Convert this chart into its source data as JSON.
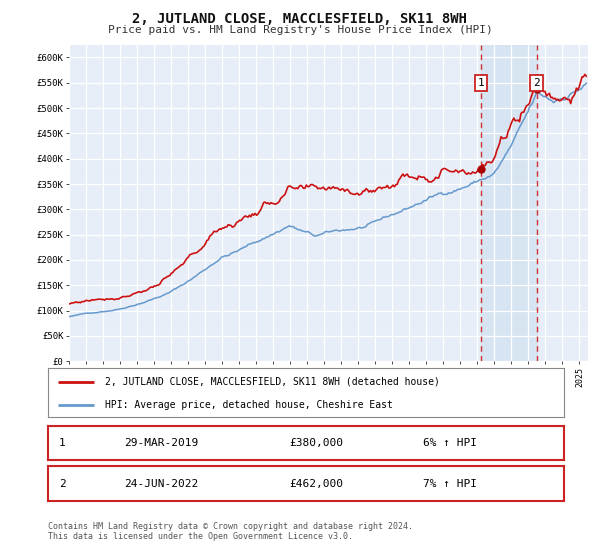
{
  "title": "2, JUTLAND CLOSE, MACCLESFIELD, SK11 8WH",
  "subtitle": "Price paid vs. HM Land Registry's House Price Index (HPI)",
  "background_color": "#ffffff",
  "plot_bg_color": "#e8eef8",
  "grid_color": "#ffffff",
  "ylim": [
    0,
    625000
  ],
  "yticks": [
    0,
    50000,
    100000,
    150000,
    200000,
    250000,
    300000,
    350000,
    400000,
    450000,
    500000,
    550000,
    600000
  ],
  "ytick_labels": [
    "£0",
    "£50K",
    "£100K",
    "£150K",
    "£200K",
    "£250K",
    "£300K",
    "£350K",
    "£400K",
    "£450K",
    "£500K",
    "£550K",
    "£600K"
  ],
  "xlim_start": 1995.0,
  "xlim_end": 2025.5,
  "xticks": [
    1995,
    1996,
    1997,
    1998,
    1999,
    2000,
    2001,
    2002,
    2003,
    2004,
    2005,
    2006,
    2007,
    2008,
    2009,
    2010,
    2011,
    2012,
    2013,
    2014,
    2015,
    2016,
    2017,
    2018,
    2019,
    2020,
    2021,
    2022,
    2023,
    2024,
    2025
  ],
  "sale1_date": 2019.21,
  "sale1_price": 380000,
  "sale1_label": "1",
  "sale1_date_str": "29-MAR-2019",
  "sale1_price_str": "£380,000",
  "sale1_pct": "6% ↑ HPI",
  "sale2_date": 2022.48,
  "sale2_price": 462000,
  "sale2_label": "2",
  "sale2_date_str": "24-JUN-2022",
  "sale2_price_str": "£462,000",
  "sale2_pct": "7% ↑ HPI",
  "line1_color": "#cc1111",
  "line2_color": "#6699cc",
  "marker_color": "#aa0000",
  "vline_color": "#cc3333",
  "shade_color": "#d0e0f0",
  "legend_label1": "2, JUTLAND CLOSE, MACCLESFIELD, SK11 8WH (detached house)",
  "legend_label2": "HPI: Average price, detached house, Cheshire East",
  "footnote": "Contains HM Land Registry data © Crown copyright and database right 2024.\nThis data is licensed under the Open Government Licence v3.0."
}
